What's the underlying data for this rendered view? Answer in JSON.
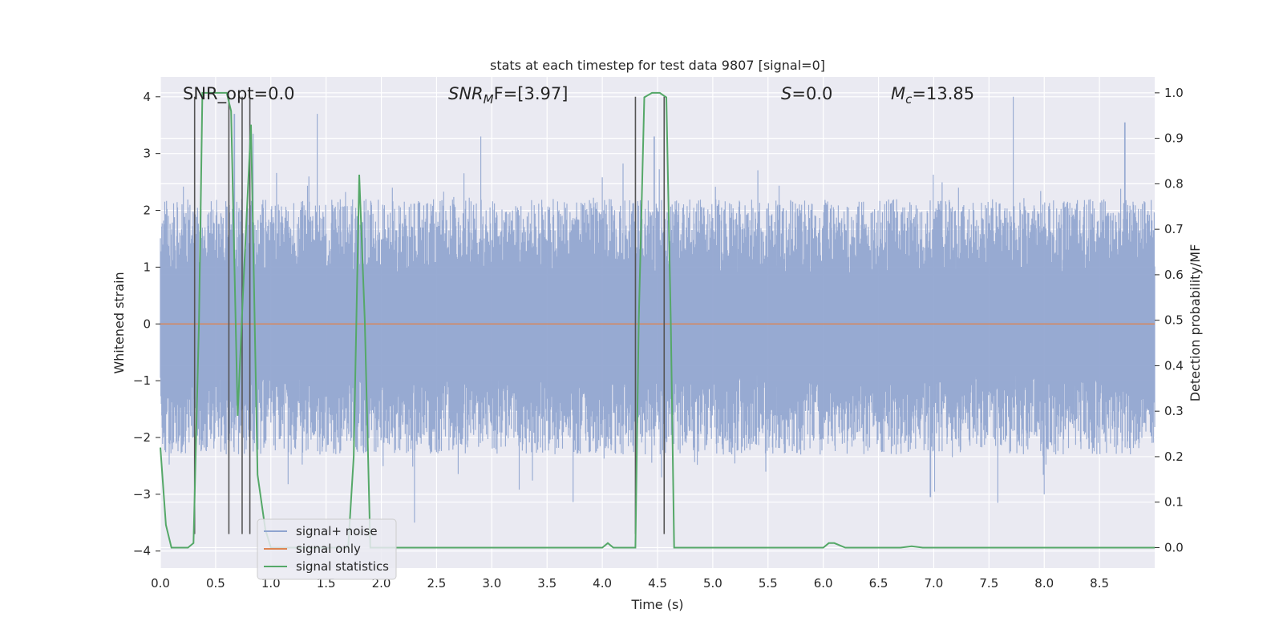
{
  "chart_data": {
    "type": "line",
    "title": "stats at each timestep for test data 9807 [signal=0]",
    "xlabel": "Time (s)",
    "ylabel_left": "Whitened strain",
    "ylabel_right": "Detection probability/MF",
    "xlim": [
      0.0,
      9.0
    ],
    "ylim_left": [
      -4.3,
      4.35
    ],
    "ylim_right": [
      -0.045,
      1.035
    ],
    "x_ticks": [
      "0.0",
      "0.5",
      "1.0",
      "1.5",
      "2.0",
      "2.5",
      "3.0",
      "3.5",
      "4.0",
      "4.5",
      "5.0",
      "5.5",
      "6.0",
      "6.5",
      "7.0",
      "7.5",
      "8.0",
      "8.5"
    ],
    "y_ticks_left": [
      "4",
      "3",
      "2",
      "1",
      "0",
      "−1",
      "−2",
      "−3",
      "−4"
    ],
    "y_ticks_right": [
      "1.0",
      "0.9",
      "0.8",
      "0.7",
      "0.6",
      "0.5",
      "0.4",
      "0.3",
      "0.2",
      "0.1",
      "0.0"
    ],
    "annotations": {
      "snr_opt": "SNR_opt=0.0",
      "snr_mf_base": "SNR",
      "snr_mf_sub": "M",
      "snr_mf_rest": "F=[3.97]",
      "s_var": "S",
      "s_rest": "=0.0",
      "mc_base": "M",
      "mc_sub": "c",
      "mc_rest": "=13.85"
    },
    "legend": {
      "position": "lower-left",
      "entries": [
        "signal+ noise",
        "signal only",
        "signal statistics"
      ]
    },
    "colors": {
      "noise": "#8fa4cf",
      "signal_only": "#dd8452",
      "statistics": "#55a868",
      "markers": "#555555",
      "background": "#eaeaf2",
      "grid": "#ffffff"
    },
    "series": [
      {
        "name": "signal+ noise",
        "note": "whitened strain noise, amplitude about ±2.5 with spikes to ±4 (sampled representation)",
        "envelope": {
          "typical_upper": 2.2,
          "typical_lower": -2.3,
          "peaks": [
            [
              0.67,
              3.7
            ],
            [
              0.84,
              3.35
            ],
            [
              1.42,
              3.7
            ],
            [
              2.9,
              3.3
            ],
            [
              4.47,
              3.3
            ],
            [
              7.72,
              4.0
            ],
            [
              8.73,
              3.55
            ],
            [
              2.3,
              -3.5
            ],
            [
              7.58,
              -3.15
            ],
            [
              6.97,
              -3.05
            ],
            [
              8.0,
              -3.0
            ]
          ]
        }
      },
      {
        "name": "signal only",
        "x": [
          0.0,
          9.0
        ],
        "y": [
          0.0,
          0.0
        ]
      },
      {
        "name": "signal statistics",
        "axis": "right",
        "x": [
          0.0,
          0.05,
          0.1,
          0.2,
          0.25,
          0.3,
          0.35,
          0.38,
          0.43,
          0.5,
          0.6,
          0.64,
          0.7,
          0.75,
          0.82,
          0.88,
          0.95,
          1.0,
          1.7,
          1.75,
          1.8,
          1.85,
          1.9,
          1.95,
          2.0,
          2.5,
          3.0,
          3.5,
          4.0,
          4.05,
          4.1,
          4.2,
          4.3,
          4.33,
          4.38,
          4.45,
          4.52,
          4.58,
          4.62,
          4.65,
          5.0,
          5.5,
          6.0,
          6.05,
          6.1,
          6.2,
          6.3,
          6.7,
          6.8,
          6.9,
          7.0,
          8.0,
          9.0
        ],
        "y": [
          0.22,
          0.05,
          0.0,
          0.0,
          0.0,
          0.01,
          0.5,
          1.0,
          1.0,
          1.0,
          1.0,
          0.96,
          0.29,
          0.57,
          0.93,
          0.16,
          0.04,
          0.0,
          0.0,
          0.2,
          0.82,
          0.5,
          0.0,
          0.0,
          0.0,
          0.0,
          0.0,
          0.0,
          0.0,
          0.01,
          0.0,
          0.0,
          0.0,
          0.5,
          0.99,
          1.0,
          1.0,
          0.99,
          0.5,
          0.0,
          0.0,
          0.0,
          0.0,
          0.01,
          0.01,
          0.0,
          0.0,
          0.0,
          0.003,
          0.0,
          0.0,
          0.0,
          0.0
        ]
      }
    ],
    "vertical_markers": {
      "ymin": -3.7,
      "ymax": 4.0,
      "x": [
        0.31,
        0.62,
        0.74,
        0.81,
        4.3,
        4.56
      ]
    }
  }
}
